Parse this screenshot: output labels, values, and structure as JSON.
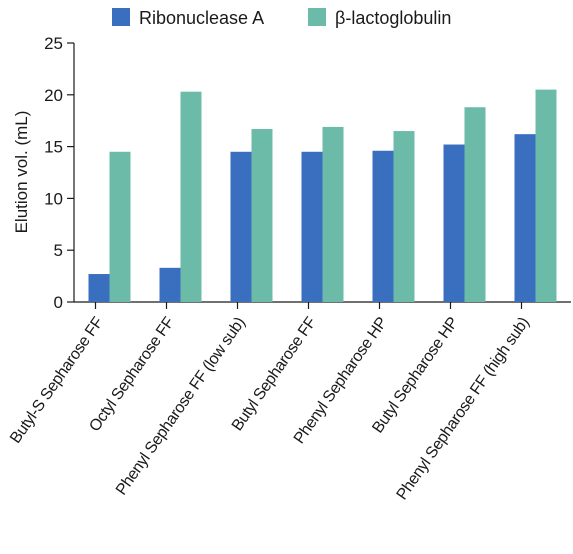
{
  "chart_data": {
    "type": "bar",
    "title": "",
    "xlabel": "",
    "ylabel": "Elution vol. (mL)",
    "ylim": [
      0,
      25
    ],
    "yticks": [
      0,
      5,
      10,
      15,
      20,
      25
    ],
    "grid": false,
    "legend_position": "top",
    "categories": [
      "Butyl-S Sepharose FF",
      "Octyl Sepharose FF",
      "Phenyl Sepharose FF (low sub)",
      "Butyl Sepharose FF",
      "Phenyl Sepharose HP",
      "Butyl Sepharose HP",
      "Phenyl Sepharose FF (high sub)"
    ],
    "series": [
      {
        "name": "Ribonuclease A",
        "color": "#3a6fbf",
        "values": [
          2.7,
          3.3,
          14.5,
          14.5,
          14.6,
          15.2,
          16.2
        ]
      },
      {
        "name": "β-lactoglobulin",
        "color": "#6cbba9",
        "values": [
          14.5,
          20.3,
          16.7,
          16.9,
          16.5,
          18.8,
          20.5
        ]
      }
    ]
  }
}
